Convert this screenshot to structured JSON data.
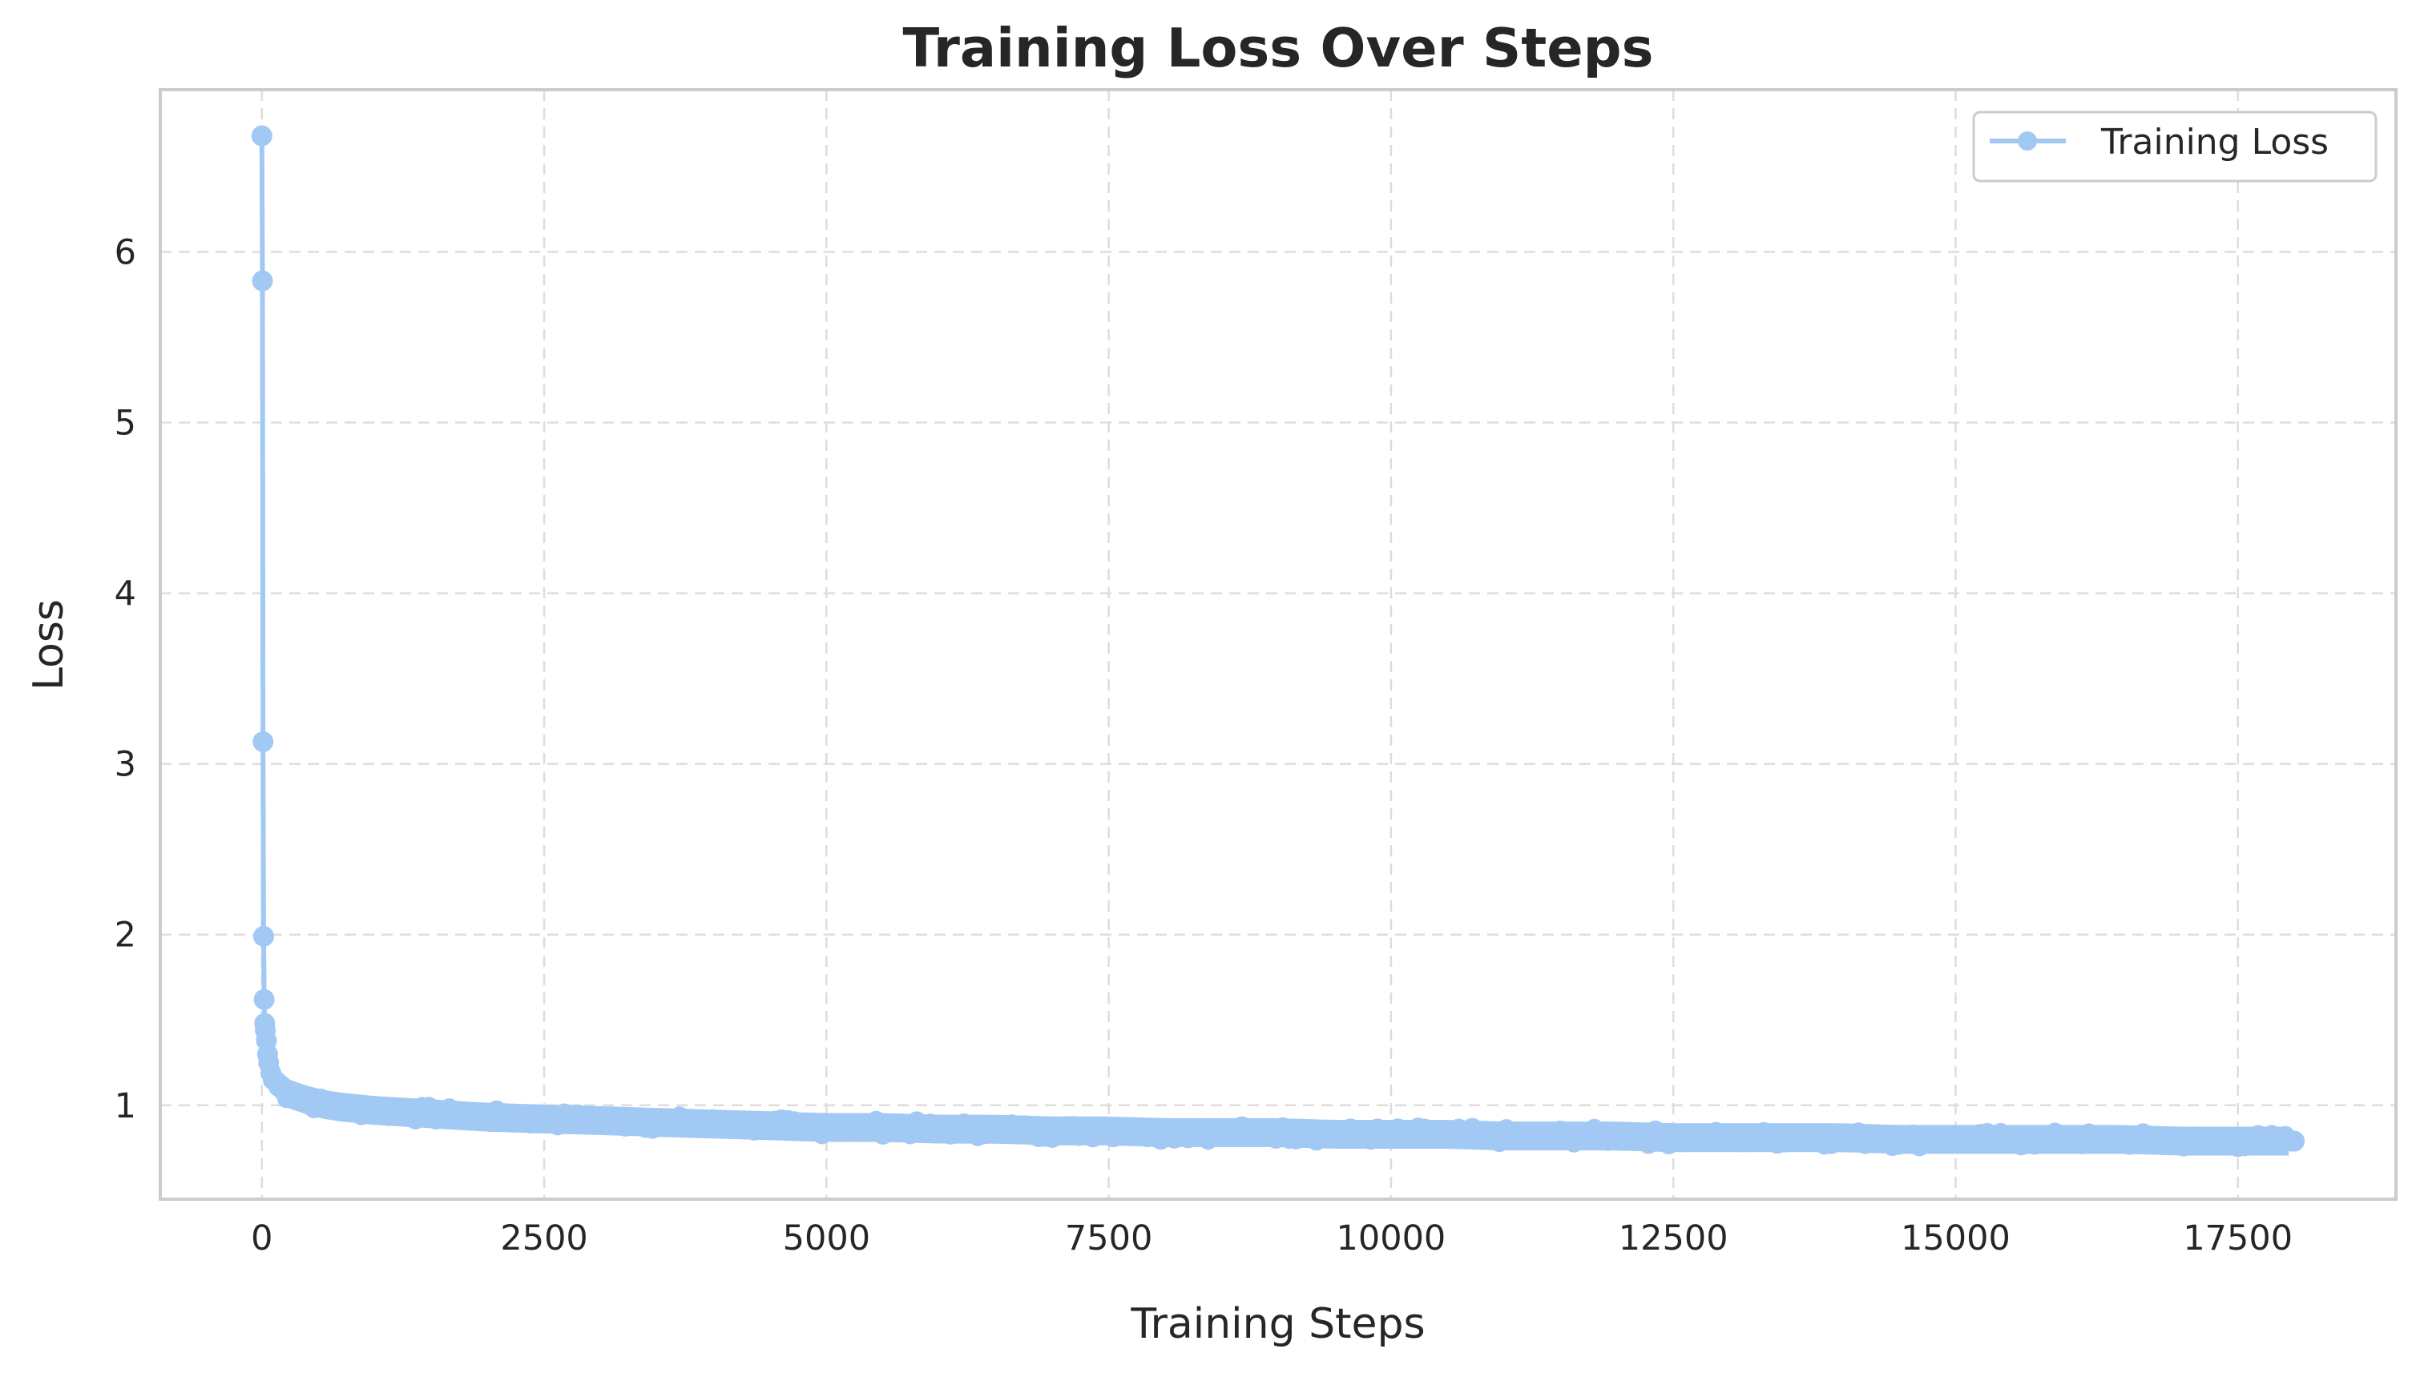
{
  "chart_data": {
    "type": "line",
    "title": "Training Loss Over Steps",
    "xlabel": "Training Steps",
    "ylabel": "Loss",
    "xlim": [
      -900,
      18900
    ],
    "ylim": [
      0.45,
      6.95
    ],
    "x_ticks": [
      0,
      2500,
      5000,
      7500,
      10000,
      12500,
      15000,
      17500
    ],
    "x_tick_labels": [
      "0",
      "2500",
      "5000",
      "7500",
      "10000",
      "12500",
      "15000",
      "17500"
    ],
    "y_ticks": [
      1,
      2,
      3,
      4,
      5,
      6
    ],
    "y_tick_labels": [
      "1",
      "2",
      "3",
      "4",
      "5",
      "6"
    ],
    "grid": true,
    "legend_position": "top-right",
    "colors": {
      "series": "#a1c9f4",
      "grid": "#dddddd",
      "frame": "#cccccc",
      "text": "#262626"
    },
    "series": [
      {
        "name": "Training Loss",
        "marker": "circle",
        "x": [
          0,
          5,
          10,
          15,
          20,
          25,
          30,
          40,
          50,
          60,
          80,
          100,
          150,
          200,
          300,
          400,
          500,
          700,
          1000,
          1500,
          2000,
          2500,
          3000,
          3500,
          4000,
          4500,
          5000,
          5500,
          6000,
          6500,
          7000,
          7500,
          8000,
          8500,
          9000,
          9500,
          10000,
          10500,
          11000,
          11500,
          12000,
          12500,
          13000,
          13500,
          14000,
          14500,
          15000,
          15500,
          16000,
          16500,
          17000,
          17500,
          18000
        ],
        "y": [
          6.68,
          5.83,
          3.13,
          1.99,
          1.62,
          1.48,
          1.44,
          1.38,
          1.3,
          1.25,
          1.19,
          1.15,
          1.11,
          1.08,
          1.05,
          1.03,
          1.01,
          0.99,
          0.97,
          0.95,
          0.93,
          0.92,
          0.91,
          0.9,
          0.89,
          0.88,
          0.87,
          0.87,
          0.86,
          0.86,
          0.85,
          0.85,
          0.84,
          0.84,
          0.84,
          0.83,
          0.83,
          0.83,
          0.82,
          0.82,
          0.82,
          0.81,
          0.81,
          0.81,
          0.81,
          0.8,
          0.8,
          0.8,
          0.8,
          0.8,
          0.79,
          0.79,
          0.79
        ]
      }
    ]
  }
}
